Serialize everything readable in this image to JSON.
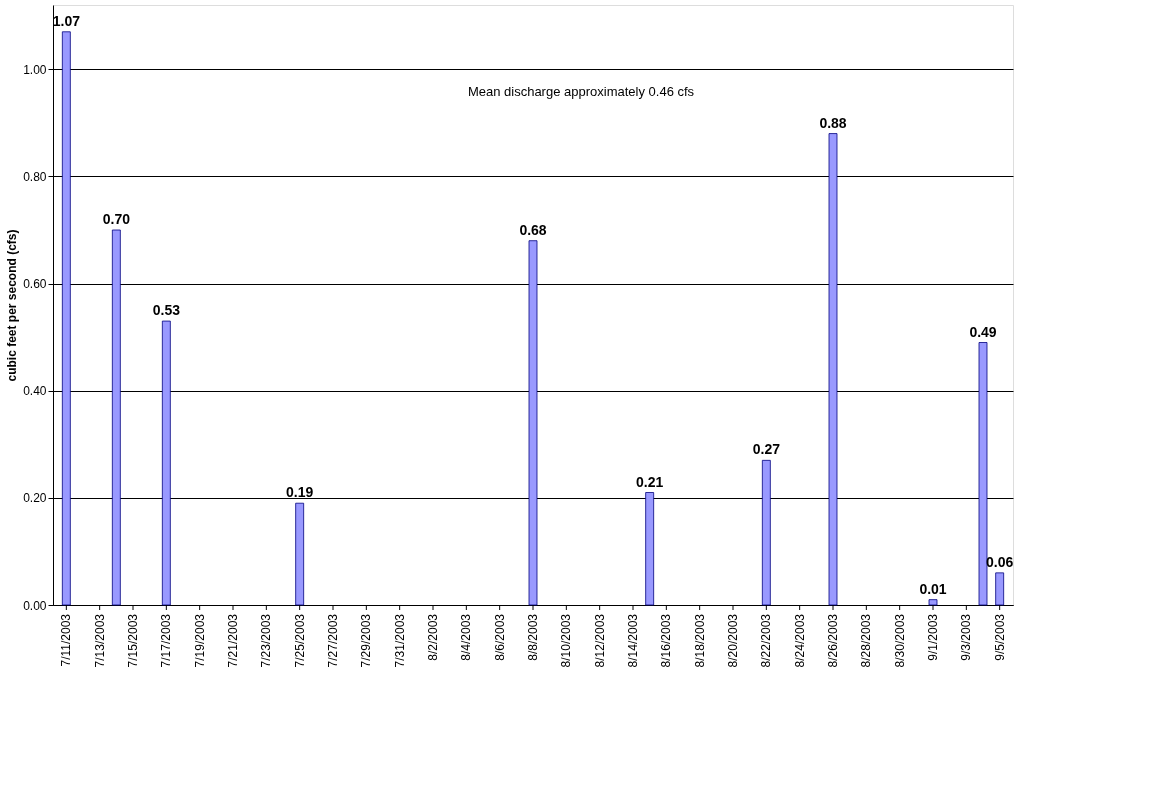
{
  "chart_data": {
    "type": "bar",
    "ylabel": "cubic feet per second (cfs)",
    "x": [
      "2003-07-11",
      "2003-07-14",
      "2003-07-17",
      "2003-07-25",
      "2003-08-08",
      "2003-08-15",
      "2003-08-22",
      "2003-08-26",
      "2003-09-01",
      "2003-09-04",
      "2003-09-05"
    ],
    "values": [
      1.07,
      0.7,
      0.53,
      0.19,
      0.68,
      0.21,
      0.27,
      0.88,
      0.01,
      0.49,
      0.06
    ],
    "value_labels": [
      "1.07",
      "0.70",
      "0.53",
      "0.19",
      "0.68",
      "0.21",
      "0.27",
      "0.88",
      "0.01",
      "0.49",
      "0.06"
    ],
    "color": "#9999ff",
    "xlim": [
      "2003-07-10T12:00",
      "2003-09-05T12:00"
    ],
    "xticks": [
      {
        "value": "2003-07-11",
        "label": "7/11/2003"
      },
      {
        "value": "2003-07-13",
        "label": "7/13/2003"
      },
      {
        "value": "2003-07-15",
        "label": "7/15/2003"
      },
      {
        "value": "2003-07-17",
        "label": "7/17/2003"
      },
      {
        "value": "2003-07-19",
        "label": "7/19/2003"
      },
      {
        "value": "2003-07-21",
        "label": "7/21/2003"
      },
      {
        "value": "2003-07-23",
        "label": "7/23/2003"
      },
      {
        "value": "2003-07-25",
        "label": "7/25/2003"
      },
      {
        "value": "2003-07-27",
        "label": "7/27/2003"
      },
      {
        "value": "2003-07-29",
        "label": "7/29/2003"
      },
      {
        "value": "2003-07-31",
        "label": "7/31/2003"
      },
      {
        "value": "2003-08-02",
        "label": "8/2/2003"
      },
      {
        "value": "2003-08-04",
        "label": "8/4/2003"
      },
      {
        "value": "2003-08-06",
        "label": "8/6/2003"
      },
      {
        "value": "2003-08-08",
        "label": "8/8/2003"
      },
      {
        "value": "2003-08-10",
        "label": "8/10/2003"
      },
      {
        "value": "2003-08-12",
        "label": "8/12/2003"
      },
      {
        "value": "2003-08-14",
        "label": "8/14/2003"
      },
      {
        "value": "2003-08-16",
        "label": "8/16/2003"
      },
      {
        "value": "2003-08-18",
        "label": "8/18/2003"
      },
      {
        "value": "2003-08-20",
        "label": "8/20/2003"
      },
      {
        "value": "2003-08-22",
        "label": "8/22/2003"
      },
      {
        "value": "2003-08-24",
        "label": "8/24/2003"
      },
      {
        "value": "2003-08-26",
        "label": "8/26/2003"
      },
      {
        "value": "2003-08-28",
        "label": "8/28/2003"
      },
      {
        "value": "2003-08-30",
        "label": "8/30/2003"
      },
      {
        "value": "2003-09-01",
        "label": "9/1/2003"
      },
      {
        "value": "2003-09-03",
        "label": "9/3/2003"
      },
      {
        "value": "2003-09-05",
        "label": "9/5/2003"
      }
    ],
    "ylim": [
      0,
      1.12
    ],
    "yticks": [
      {
        "value": 0,
        "label": "0.00"
      },
      {
        "value": 0.2,
        "label": "0.20"
      },
      {
        "value": 0.4,
        "label": "0.40"
      },
      {
        "value": 0.6,
        "label": "0.60"
      },
      {
        "value": 0.8,
        "label": "0.80"
      },
      {
        "value": 1.0,
        "label": "1.00"
      }
    ],
    "grid": "y",
    "annotations": [
      "Mean discharge approximately 0.46 cfs"
    ]
  }
}
